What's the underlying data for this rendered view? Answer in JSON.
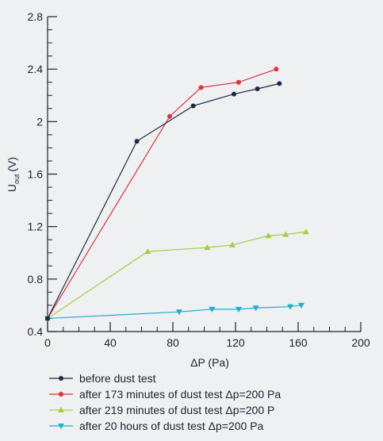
{
  "chart_data": {
    "type": "line",
    "xlabel": "ΔP (Pa)",
    "ylabel": "U",
    "ylabel_sub": "out",
    "ylabel_unit": "(V)",
    "xlim": [
      0,
      200
    ],
    "ylim": [
      0.4,
      2.8
    ],
    "x_ticks": [
      0,
      40,
      80,
      120,
      160,
      200
    ],
    "x_tick_labels": [
      "0",
      "40",
      "80",
      "120",
      "160",
      "200"
    ],
    "y_ticks": [
      0.4,
      0.8,
      1.2,
      1.6,
      2.0,
      2.4,
      2.8
    ],
    "y_tick_labels": [
      "0.4",
      "0.8",
      "1.2",
      "1.6",
      "2",
      "2.4",
      "2.8"
    ],
    "grid": false,
    "legend_position": "bottom",
    "series": [
      {
        "name": "before dust test",
        "color": "#1a2a4a",
        "marker": "circle",
        "x": [
          0,
          57,
          93,
          119,
          134,
          148
        ],
        "y": [
          0.5,
          1.85,
          2.12,
          2.21,
          2.25,
          2.29
        ]
      },
      {
        "name": "after 173 minutes of dust test Δp=200 Pa",
        "color": "#e0303a",
        "marker": "circle",
        "x": [
          0,
          78,
          98,
          122,
          146
        ],
        "y": [
          0.5,
          2.04,
          2.26,
          2.3,
          2.4
        ]
      },
      {
        "name": "after 219 minutes of dust test Δp=200 P",
        "color": "#a6cf3e",
        "marker": "triangle-up",
        "x": [
          0,
          64,
          102,
          118,
          141,
          152,
          165
        ],
        "y": [
          0.5,
          1.01,
          1.04,
          1.06,
          1.13,
          1.14,
          1.16
        ]
      },
      {
        "name": "after 20 hours of dust test Δp=200 Pa",
        "color": "#1ab0d0",
        "marker": "triangle-down",
        "x": [
          0,
          84,
          105,
          122,
          133,
          155,
          162
        ],
        "y": [
          0.5,
          0.55,
          0.57,
          0.57,
          0.58,
          0.59,
          0.6
        ]
      }
    ]
  }
}
